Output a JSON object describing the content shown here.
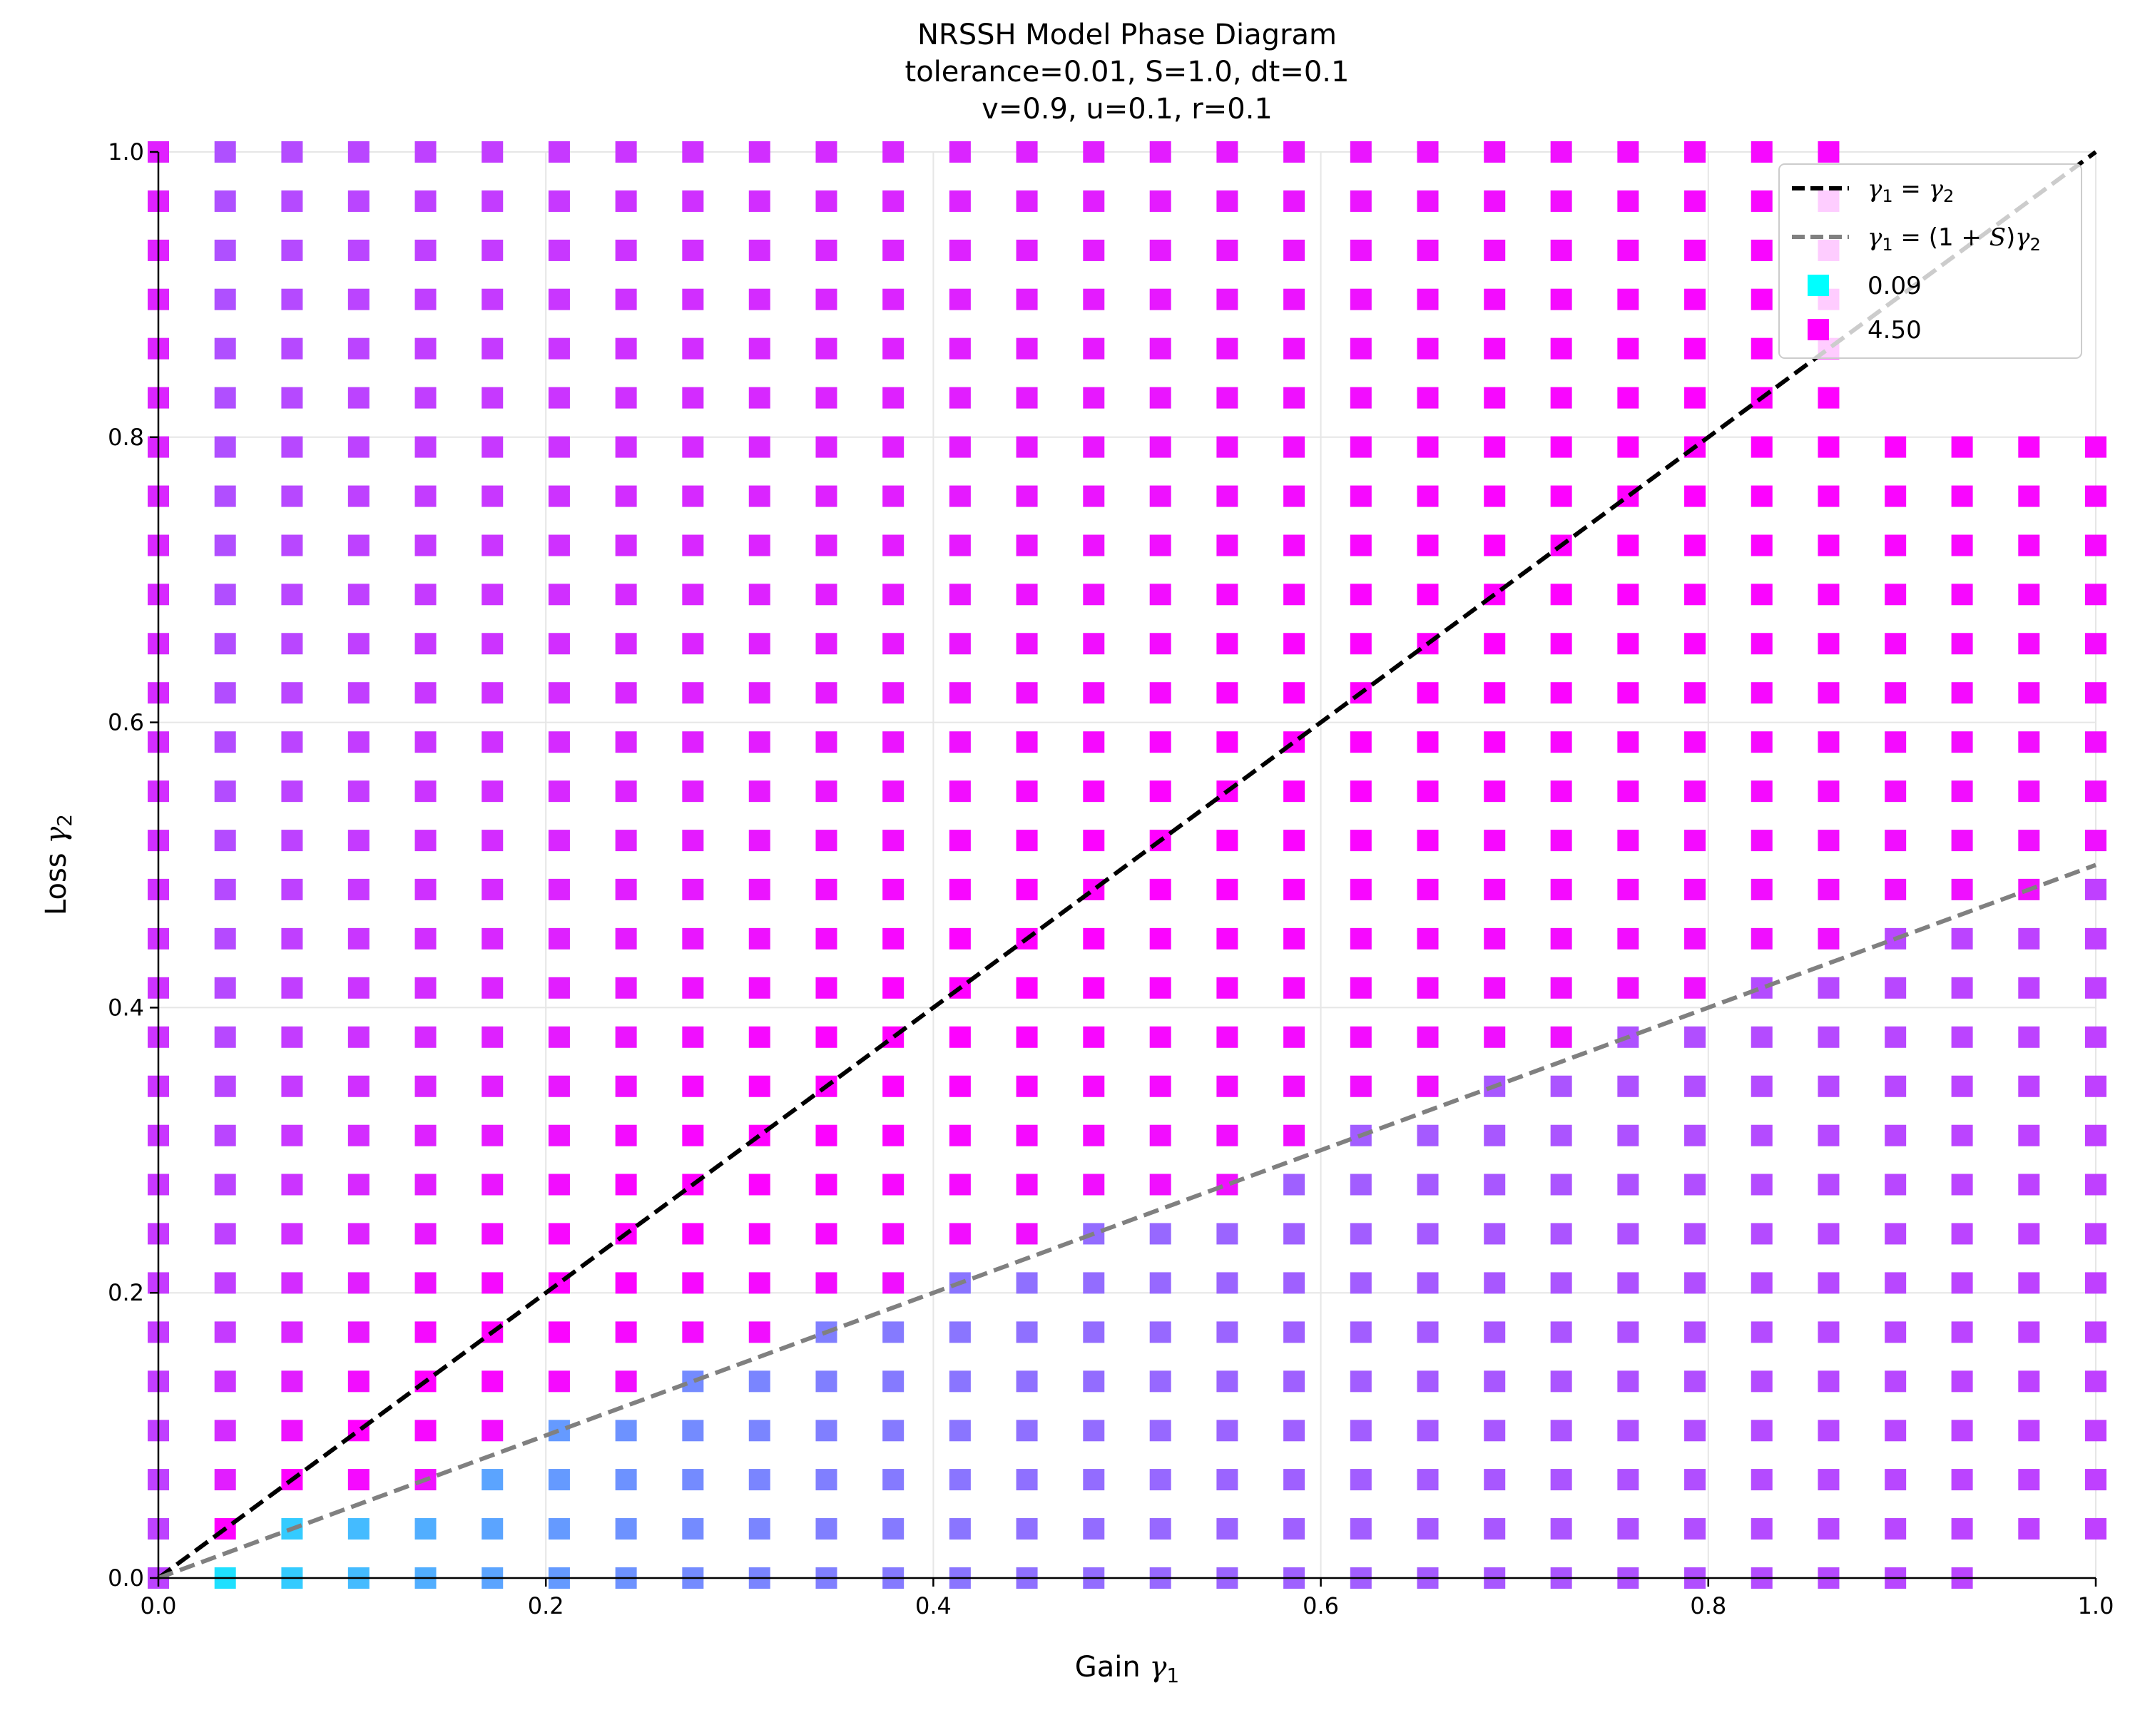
{
  "chart_data": {
    "type": "scatter",
    "title_lines": [
      "NRSSH Model Phase Diagram",
      "tolerance=0.01, S=1.0, dt=0.1",
      "v=0.9, u=0.1, r=0.1"
    ],
    "xlabel": {
      "prefix": "Gain ",
      "symbol": "γ",
      "subscript": "1"
    },
    "ylabel": {
      "prefix": "Loss ",
      "symbol": "γ",
      "subscript": "2"
    },
    "xlim": [
      0.0,
      1.0
    ],
    "ylim": [
      0.0,
      1.0
    ],
    "xticks": [
      "0.0",
      "0.2",
      "0.4",
      "0.6",
      "0.8",
      "1.0"
    ],
    "yticks": [
      "0.0",
      "0.2",
      "0.4",
      "0.6",
      "0.8",
      "1.0"
    ],
    "grid": true,
    "grid_axis_values": [
      0,
      0.0345,
      0.069,
      0.1034,
      0.1379,
      0.1724,
      0.2069,
      0.2414,
      0.2759,
      0.3103,
      0.3448,
      0.3793,
      0.4138,
      0.4483,
      0.4828,
      0.5172,
      0.5517,
      0.5862,
      0.6207,
      0.6552,
      0.6897,
      0.7241,
      0.7586,
      0.7931,
      0.8276,
      0.8621,
      0.8966,
      0.931,
      0.9655,
      1.0
    ],
    "color_scale": {
      "min": 0.09,
      "max": 4.5,
      "min_color": "#00ffff",
      "max_color": "#ff00ff"
    },
    "reference_lines": [
      {
        "name": "γ1 = γ2",
        "slope": 1.0,
        "color": "#000000",
        "style": "dashed"
      },
      {
        "name": "γ1 = (1+S)γ2",
        "slope": 0.5,
        "color": "#808080",
        "style": "dashed"
      }
    ],
    "legend": {
      "position": "top-right",
      "entries": [
        {
          "kind": "line",
          "color": "#000000",
          "parts": [
            "γ",
            "1",
            " = ",
            "γ",
            "2"
          ]
        },
        {
          "kind": "line",
          "color": "#808080",
          "parts": [
            "γ",
            "1",
            " = (1 + ",
            "S",
            ")",
            "γ",
            "2"
          ]
        },
        {
          "kind": "marker",
          "color": "#00ffff",
          "label": "0.09"
        },
        {
          "kind": "marker",
          "color": "#ff00ff",
          "label": "4.50"
        }
      ]
    }
  }
}
